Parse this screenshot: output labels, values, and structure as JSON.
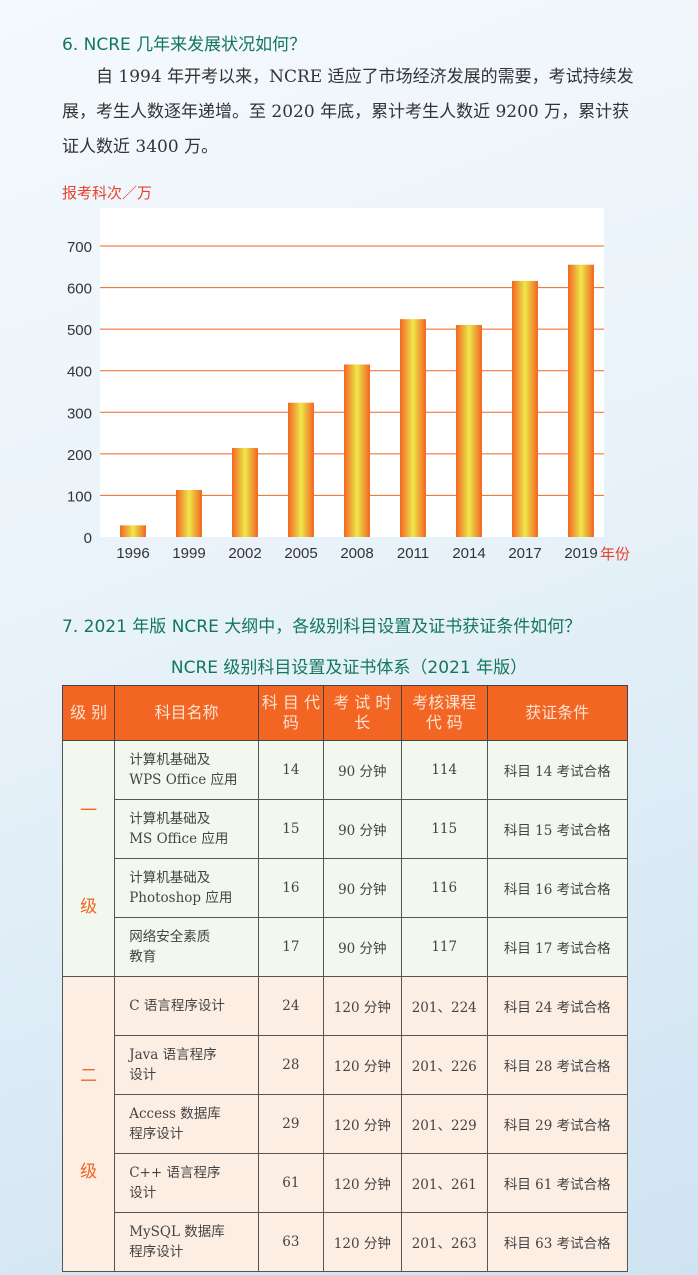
{
  "q6": {
    "heading": "6. NCRE 几年来发展状况如何？",
    "paragraph": "自 1994 年开考以来，NCRE 适应了市场经济发展的需要，考试持续发展，考生人数逐年递增。至 2020 年底，累计考生人数近 9200 万，累计获证人数近 3400 万。"
  },
  "chart_data": {
    "type": "bar",
    "ylabel": "报考科次／万",
    "xlabel": "年份",
    "categories": [
      "1996",
      "1999",
      "2002",
      "2005",
      "2008",
      "2011",
      "2014",
      "2017",
      "2019"
    ],
    "values": [
      28,
      113,
      214,
      323,
      415,
      524,
      510,
      616,
      655
    ],
    "ylim": [
      0,
      700
    ],
    "yticks": [
      "0",
      "100",
      "200",
      "300",
      "400",
      "500",
      "600",
      "700"
    ],
    "grid": true,
    "colors": {
      "bar_edge": "#f26522",
      "bar_center": "#ede84a",
      "grid": "#f26522"
    }
  },
  "q7": {
    "heading": "7. 2021 年版 NCRE 大纲中，各级别科目设置及证书获证条件如何？",
    "table_title": "NCRE 级别科目设置及证书体系（2021 年版）",
    "headers": [
      "级 别",
      "科目名称",
      "科 目 代 码",
      "考 试 时 长",
      "考核课程 代 码",
      "获证条件"
    ],
    "groups": [
      {
        "level": "一 级",
        "rows": [
          [
            "计算机基础及 WPS Office 应用",
            "14",
            "90 分钟",
            "114",
            "科目 14 考试合格"
          ],
          [
            "计算机基础及 MS Office 应用",
            "15",
            "90 分钟",
            "115",
            "科目 15 考试合格"
          ],
          [
            "计算机基础及 Photoshop 应用",
            "16",
            "90 分钟",
            "116",
            "科目 16 考试合格"
          ],
          [
            "网络安全素质 教育",
            "17",
            "90 分钟",
            "117",
            "科目 17 考试合格"
          ]
        ]
      },
      {
        "level": "二 级",
        "rows": [
          [
            "C 语言程序设计",
            "24",
            "120 分钟",
            "201、224",
            "科目 24 考试合格"
          ],
          [
            "Java 语言程序 设计",
            "28",
            "120 分钟",
            "201、226",
            "科目 28 考试合格"
          ],
          [
            "Access 数据库 程序设计",
            "29",
            "120 分钟",
            "201、229",
            "科目 29 考试合格"
          ],
          [
            "C++ 语言程序 设计",
            "61",
            "120 分钟",
            "201、261",
            "科目 61 考试合格"
          ],
          [
            "MySQL 数据库 程序设计",
            "63",
            "120 分钟",
            "201、263",
            "科目 63 考试合格"
          ]
        ]
      }
    ]
  },
  "colors": {
    "header": "#f26522",
    "heading": "#12775a",
    "group1": "#f3f8ee",
    "group2": "#fdeee4"
  }
}
